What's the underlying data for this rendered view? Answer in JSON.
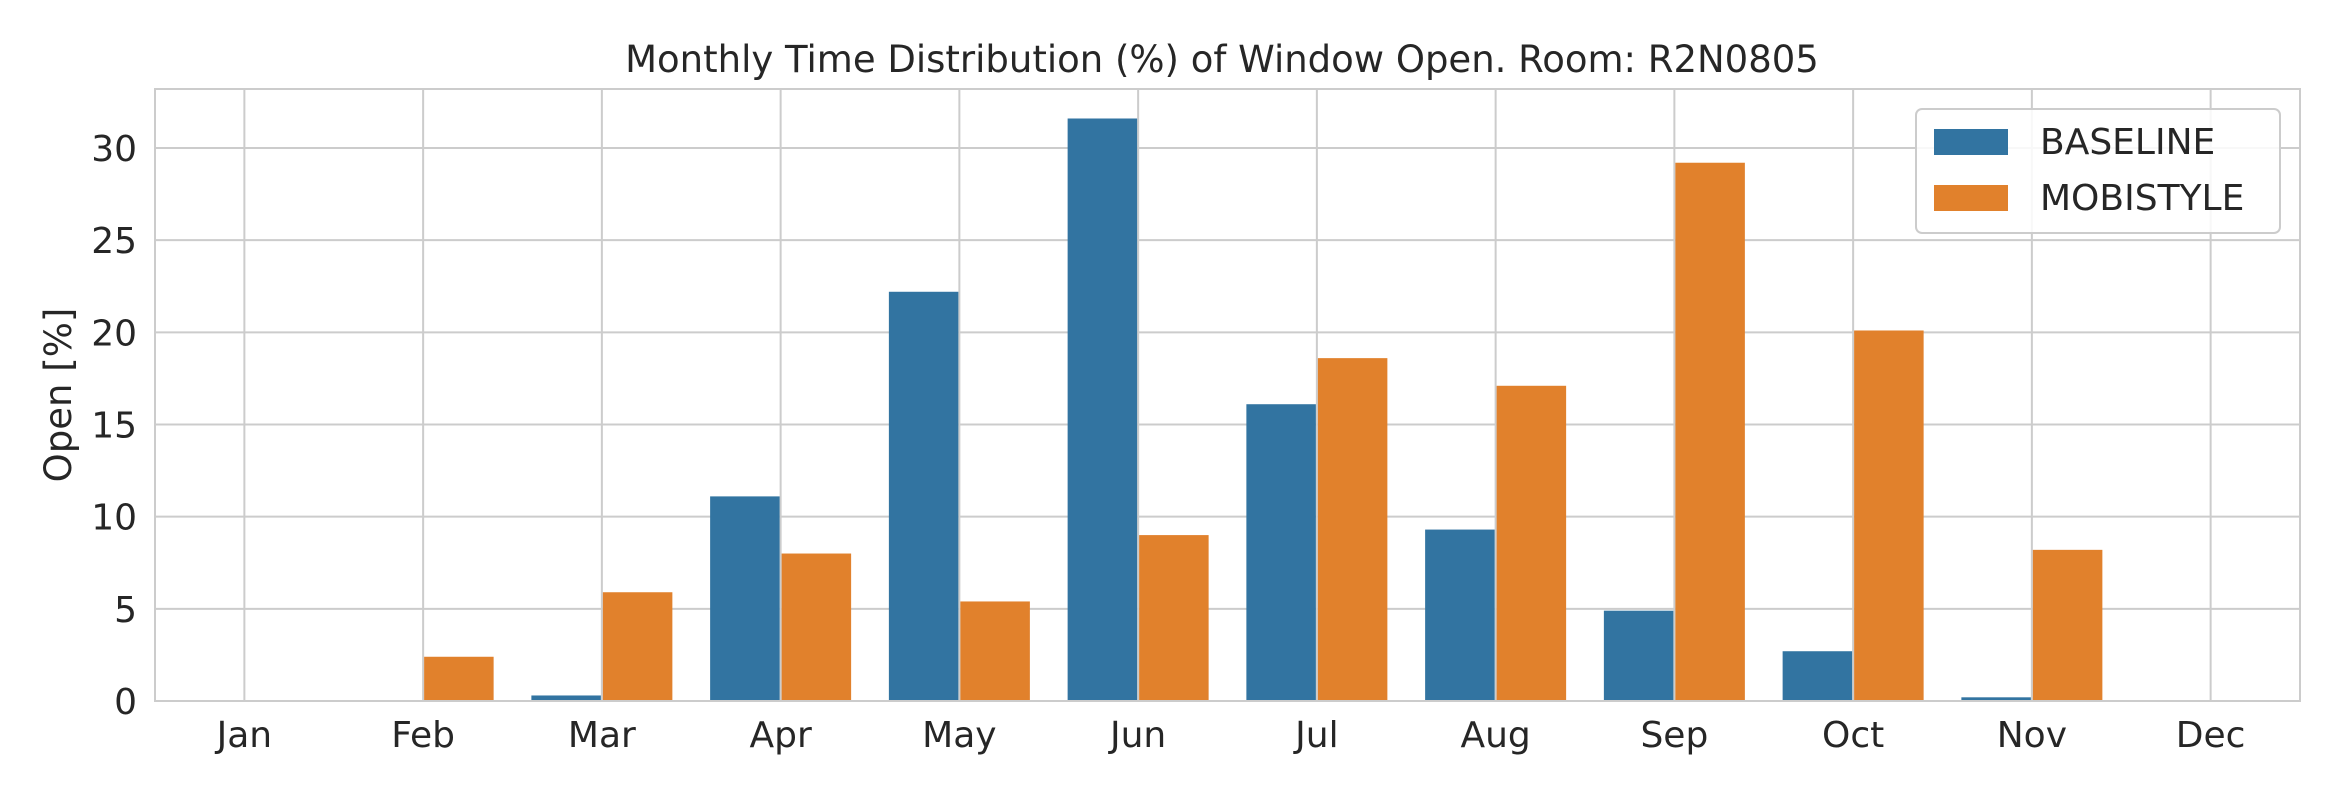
{
  "chart_data": {
    "type": "bar",
    "title": "Monthly Time Distribution (%) of Window Open. Room: R2N0805",
    "xlabel": "",
    "ylabel": "Open [%]",
    "categories": [
      "Jan",
      "Feb",
      "Mar",
      "Apr",
      "May",
      "Jun",
      "Jul",
      "Aug",
      "Sep",
      "Oct",
      "Nov",
      "Dec"
    ],
    "series": [
      {
        "name": "BASELINE",
        "color": "#3274a1",
        "values": [
          0,
          0,
          0.3,
          11.1,
          22.2,
          31.6,
          16.1,
          9.3,
          4.9,
          2.7,
          0.2,
          0
        ]
      },
      {
        "name": "MOBISTYLE",
        "color": "#e1812c",
        "values": [
          0,
          2.4,
          5.9,
          8.0,
          5.4,
          9.0,
          18.6,
          17.1,
          29.2,
          20.1,
          8.2,
          0
        ]
      }
    ],
    "ylim": [
      0,
      33.2
    ],
    "yticks": [
      0,
      5,
      10,
      15,
      20,
      25,
      30
    ],
    "grid": true,
    "legend_position": "top-right"
  }
}
